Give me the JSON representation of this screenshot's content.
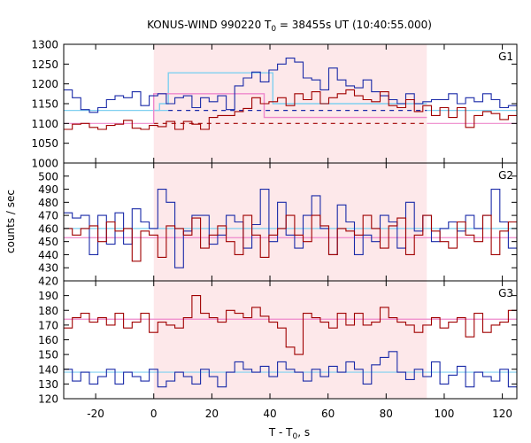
{
  "title": "KONUS-WIND 990220 T",
  "title_sub": "0",
  "title_rest": " = 38455s UT (10:40:55.000)",
  "xlabel": "T - T",
  "xlabel_sub": "0",
  "xlabel_rest": ", s",
  "ylabel": "counts / sec",
  "colors": {
    "red": "#a00000",
    "blue": "#1a2aa8",
    "cyan": "#80d0f0",
    "pink": "#ee88cc",
    "shade": "#fde8ea"
  },
  "chart_data": {
    "type": "line",
    "x_range": [
      -31,
      125
    ],
    "x_ticks": [
      -20,
      0,
      20,
      40,
      60,
      80,
      100,
      120
    ],
    "shade_region": [
      0,
      94
    ],
    "bin_width": 2.944,
    "bin_start": -31,
    "panels": [
      {
        "label": "G1",
        "ylim": [
          1000,
          1300
        ],
        "y_ticks": [
          1000,
          1050,
          1100,
          1150,
          1200,
          1250,
          1300
        ],
        "series": [
          {
            "color_key": "blue",
            "values": [
              1185,
              1165,
              1135,
              1128,
              1140,
              1160,
              1170,
              1165,
              1180,
              1145,
              1170,
              1175,
              1150,
              1165,
              1170,
              1140,
              1165,
              1155,
              1170,
              1135,
              1195,
              1215,
              1230,
              1205,
              1235,
              1250,
              1265,
              1255,
              1215,
              1210,
              1185,
              1240,
              1210,
              1195,
              1190,
              1210,
              1180,
              1170,
              1160,
              1150,
              1175,
              1150,
              1155,
              1160,
              1160,
              1175,
              1150,
              1165,
              1155,
              1175,
              1160,
              1140,
              1145,
              1180,
              1160,
              1170,
              1150,
              1145,
              1165,
              1175,
              1160,
              1150,
              1170,
              1155,
              1140,
              1160,
              1170,
              1140,
              1160,
              1170,
              1150,
              1170,
              1160,
              1140,
              1150,
              1165,
              1130,
              1110,
              1175,
              1150,
              1140,
              1175,
              1130,
              1140,
              1150,
              1175,
              1140,
              1170,
              1150,
              1140,
              1125,
              1115,
              1140,
              1160,
              1175,
              1100,
              1120
            ]
          },
          {
            "color_key": "red",
            "values": [
              1085,
              1098,
              1100,
              1090,
              1085,
              1095,
              1098,
              1108,
              1088,
              1085,
              1095,
              1092,
              1105,
              1085,
              1105,
              1098,
              1085,
              1115,
              1120,
              1120,
              1130,
              1138,
              1165,
              1150,
              1155,
              1165,
              1145,
              1175,
              1160,
              1180,
              1150,
              1165,
              1175,
              1185,
              1170,
              1160,
              1155,
              1180,
              1145,
              1140,
              1160,
              1130,
              1145,
              1120,
              1140,
              1115,
              1140,
              1090,
              1120,
              1130,
              1125,
              1110,
              1120,
              1100,
              1130,
              1130,
              1090,
              1095,
              1120,
              1100,
              1130,
              1105,
              1100,
              1080,
              1100,
              1115,
              1095,
              1110,
              1100,
              1075,
              1090,
              1100,
              1120,
              1090,
              1130,
              1070,
              1135,
              1100,
              1080,
              1100,
              1100,
              1120,
              1090,
              1105,
              1080,
              1125,
              1100,
              1090,
              1070,
              1080,
              1110,
              1080,
              1090,
              1100,
              1060,
              1080,
              1070
            ]
          }
        ],
        "bg_levels": [
          {
            "color_key": "cyan",
            "y": 1133,
            "x": [
              -31,
              5
            ]
          },
          {
            "color_key": "cyan",
            "y": 1133,
            "x": [
              94,
              125
            ]
          },
          {
            "color_key": "pink",
            "y": 1100,
            "x": [
              -31,
              0
            ]
          },
          {
            "color_key": "pink",
            "y": 1100,
            "x": [
              94,
              125
            ]
          }
        ],
        "dashed_levels": [
          {
            "color_key": "blue",
            "y": 1133,
            "x": [
              5,
              94
            ]
          },
          {
            "color_key": "red",
            "y": 1100,
            "x": [
              0,
              94
            ]
          }
        ],
        "steps": [
          {
            "color_key": "cyan",
            "points": [
              [
                0,
                1133
              ],
              [
                2,
                1133
              ],
              [
                2,
                1150
              ],
              [
                5,
                1150
              ],
              [
                5,
                1228
              ],
              [
                41,
                1228
              ],
              [
                41,
                1150
              ],
              [
                94,
                1150
              ]
            ]
          },
          {
            "color_key": "pink",
            "points": [
              [
                0,
                1100
              ],
              [
                0,
                1175
              ],
              [
                38,
                1175
              ],
              [
                38,
                1115
              ],
              [
                94,
                1115
              ]
            ]
          }
        ]
      },
      {
        "label": "G2",
        "ylim": [
          420,
          510
        ],
        "y_ticks": [
          420,
          430,
          440,
          450,
          460,
          470,
          480,
          490,
          500
        ],
        "series": [
          {
            "color_key": "blue",
            "values": [
              472,
              468,
              470,
              440,
              470,
              448,
              472,
              448,
              475,
              465,
              460,
              490,
              480,
              430,
              458,
              470,
              470,
              448,
              455,
              470,
              465,
              445,
              463,
              490,
              450,
              480,
              455,
              445,
              470,
              485,
              460,
              440,
              478,
              465,
              440,
              455,
              450,
              470,
              465,
              445,
              480,
              458,
              470,
              450,
              460,
              465,
              458,
              470,
              460,
              470,
              490,
              465,
              445,
              460,
              475,
              445,
              462,
              470,
              450,
              495,
              455,
              470,
              460,
              450,
              485,
              445,
              465,
              475,
              480,
              460,
              450,
              470,
              485,
              450,
              465,
              480,
              470,
              445,
              462,
              475,
              460,
              450,
              470,
              465,
              440,
              455,
              480,
              460,
              445,
              470,
              462,
              455,
              465,
              470,
              455,
              450,
              460
            ]
          },
          {
            "color_key": "red",
            "values": [
              460,
              455,
              460,
              462,
              450,
              465,
              458,
              460,
              435,
              458,
              455,
              438,
              462,
              460,
              455,
              468,
              445,
              455,
              462,
              450,
              440,
              470,
              455,
              438,
              455,
              460,
              470,
              455,
              450,
              470,
              462,
              440,
              460,
              458,
              455,
              470,
              460,
              445,
              462,
              468,
              440,
              455,
              470,
              458,
              450,
              445,
              465,
              455,
              450,
              470,
              440,
              458,
              465,
              455,
              468,
              445,
              460,
              440,
              455,
              462,
              450,
              470,
              455,
              460,
              465,
              448,
              458,
              440,
              460,
              455,
              468,
              452,
              460,
              445,
              462,
              458,
              455,
              470,
              450,
              462,
              458,
              455,
              460,
              458,
              455,
              465,
              460,
              445,
              458,
              470,
              462,
              440,
              465,
              455,
              460,
              458,
              462
            ]
          }
        ],
        "bg_levels": [
          {
            "color_key": "cyan",
            "y": 460,
            "x": [
              -31,
              125
            ]
          },
          {
            "color_key": "pink",
            "y": 453,
            "x": [
              -31,
              125
            ]
          }
        ],
        "dashed_levels": [],
        "steps": []
      },
      {
        "label": "G3",
        "ylim": [
          120,
          200
        ],
        "y_ticks": [
          120,
          130,
          140,
          150,
          160,
          170,
          180,
          190
        ],
        "series": [
          {
            "color_key": "blue",
            "values": [
              140,
              132,
              138,
              130,
              135,
              140,
              130,
              138,
              135,
              132,
              140,
              128,
              132,
              138,
              135,
              130,
              140,
              135,
              128,
              138,
              145,
              140,
              138,
              142,
              135,
              145,
              140,
              138,
              132,
              140,
              135,
              142,
              138,
              145,
              140,
              130,
              143,
              148,
              152,
              138,
              133,
              140,
              135,
              145,
              130,
              136,
              142,
              128,
              138,
              135,
              132,
              140,
              128,
              125,
              138,
              135,
              132,
              140,
              138,
              128,
              135,
              140,
              132,
              138,
              130,
              125,
              132,
              138,
              135,
              128,
              140,
              135,
              138,
              132,
              128,
              135,
              140,
              145,
              130,
              138,
              135,
              132,
              128,
              140,
              135,
              145,
              138,
              132,
              140,
              130,
              135,
              138,
              128,
              132,
              140,
              135,
              138
            ]
          },
          {
            "color_key": "red",
            "values": [
              168,
              175,
              178,
              172,
              175,
              170,
              178,
              168,
              172,
              178,
              165,
              172,
              170,
              168,
              175,
              190,
              178,
              175,
              172,
              180,
              178,
              175,
              182,
              176,
              172,
              168,
              155,
              150,
              178,
              175,
              172,
              168,
              178,
              170,
              178,
              170,
              172,
              182,
              175,
              172,
              170,
              165,
              170,
              175,
              168,
              172,
              175,
              162,
              178,
              165,
              170,
              172,
              180,
              175,
              172,
              165,
              170,
              172,
              168,
              175,
              170,
              158,
              175,
              180,
              172,
              178,
              168,
              180,
              175,
              170,
              172,
              178,
              175,
              165,
              172,
              168,
              165,
              162,
              175,
              158,
              172,
              175,
              180,
              175,
              158,
              178,
              165,
              172,
              168,
              175,
              160,
              188,
              172,
              178,
              180,
              175,
              182
            ]
          }
        ],
        "bg_levels": [
          {
            "color_key": "cyan",
            "y": 138,
            "x": [
              -31,
              125
            ]
          },
          {
            "color_key": "pink",
            "y": 174,
            "x": [
              -31,
              125
            ]
          }
        ],
        "dashed_levels": [],
        "steps": []
      }
    ]
  }
}
